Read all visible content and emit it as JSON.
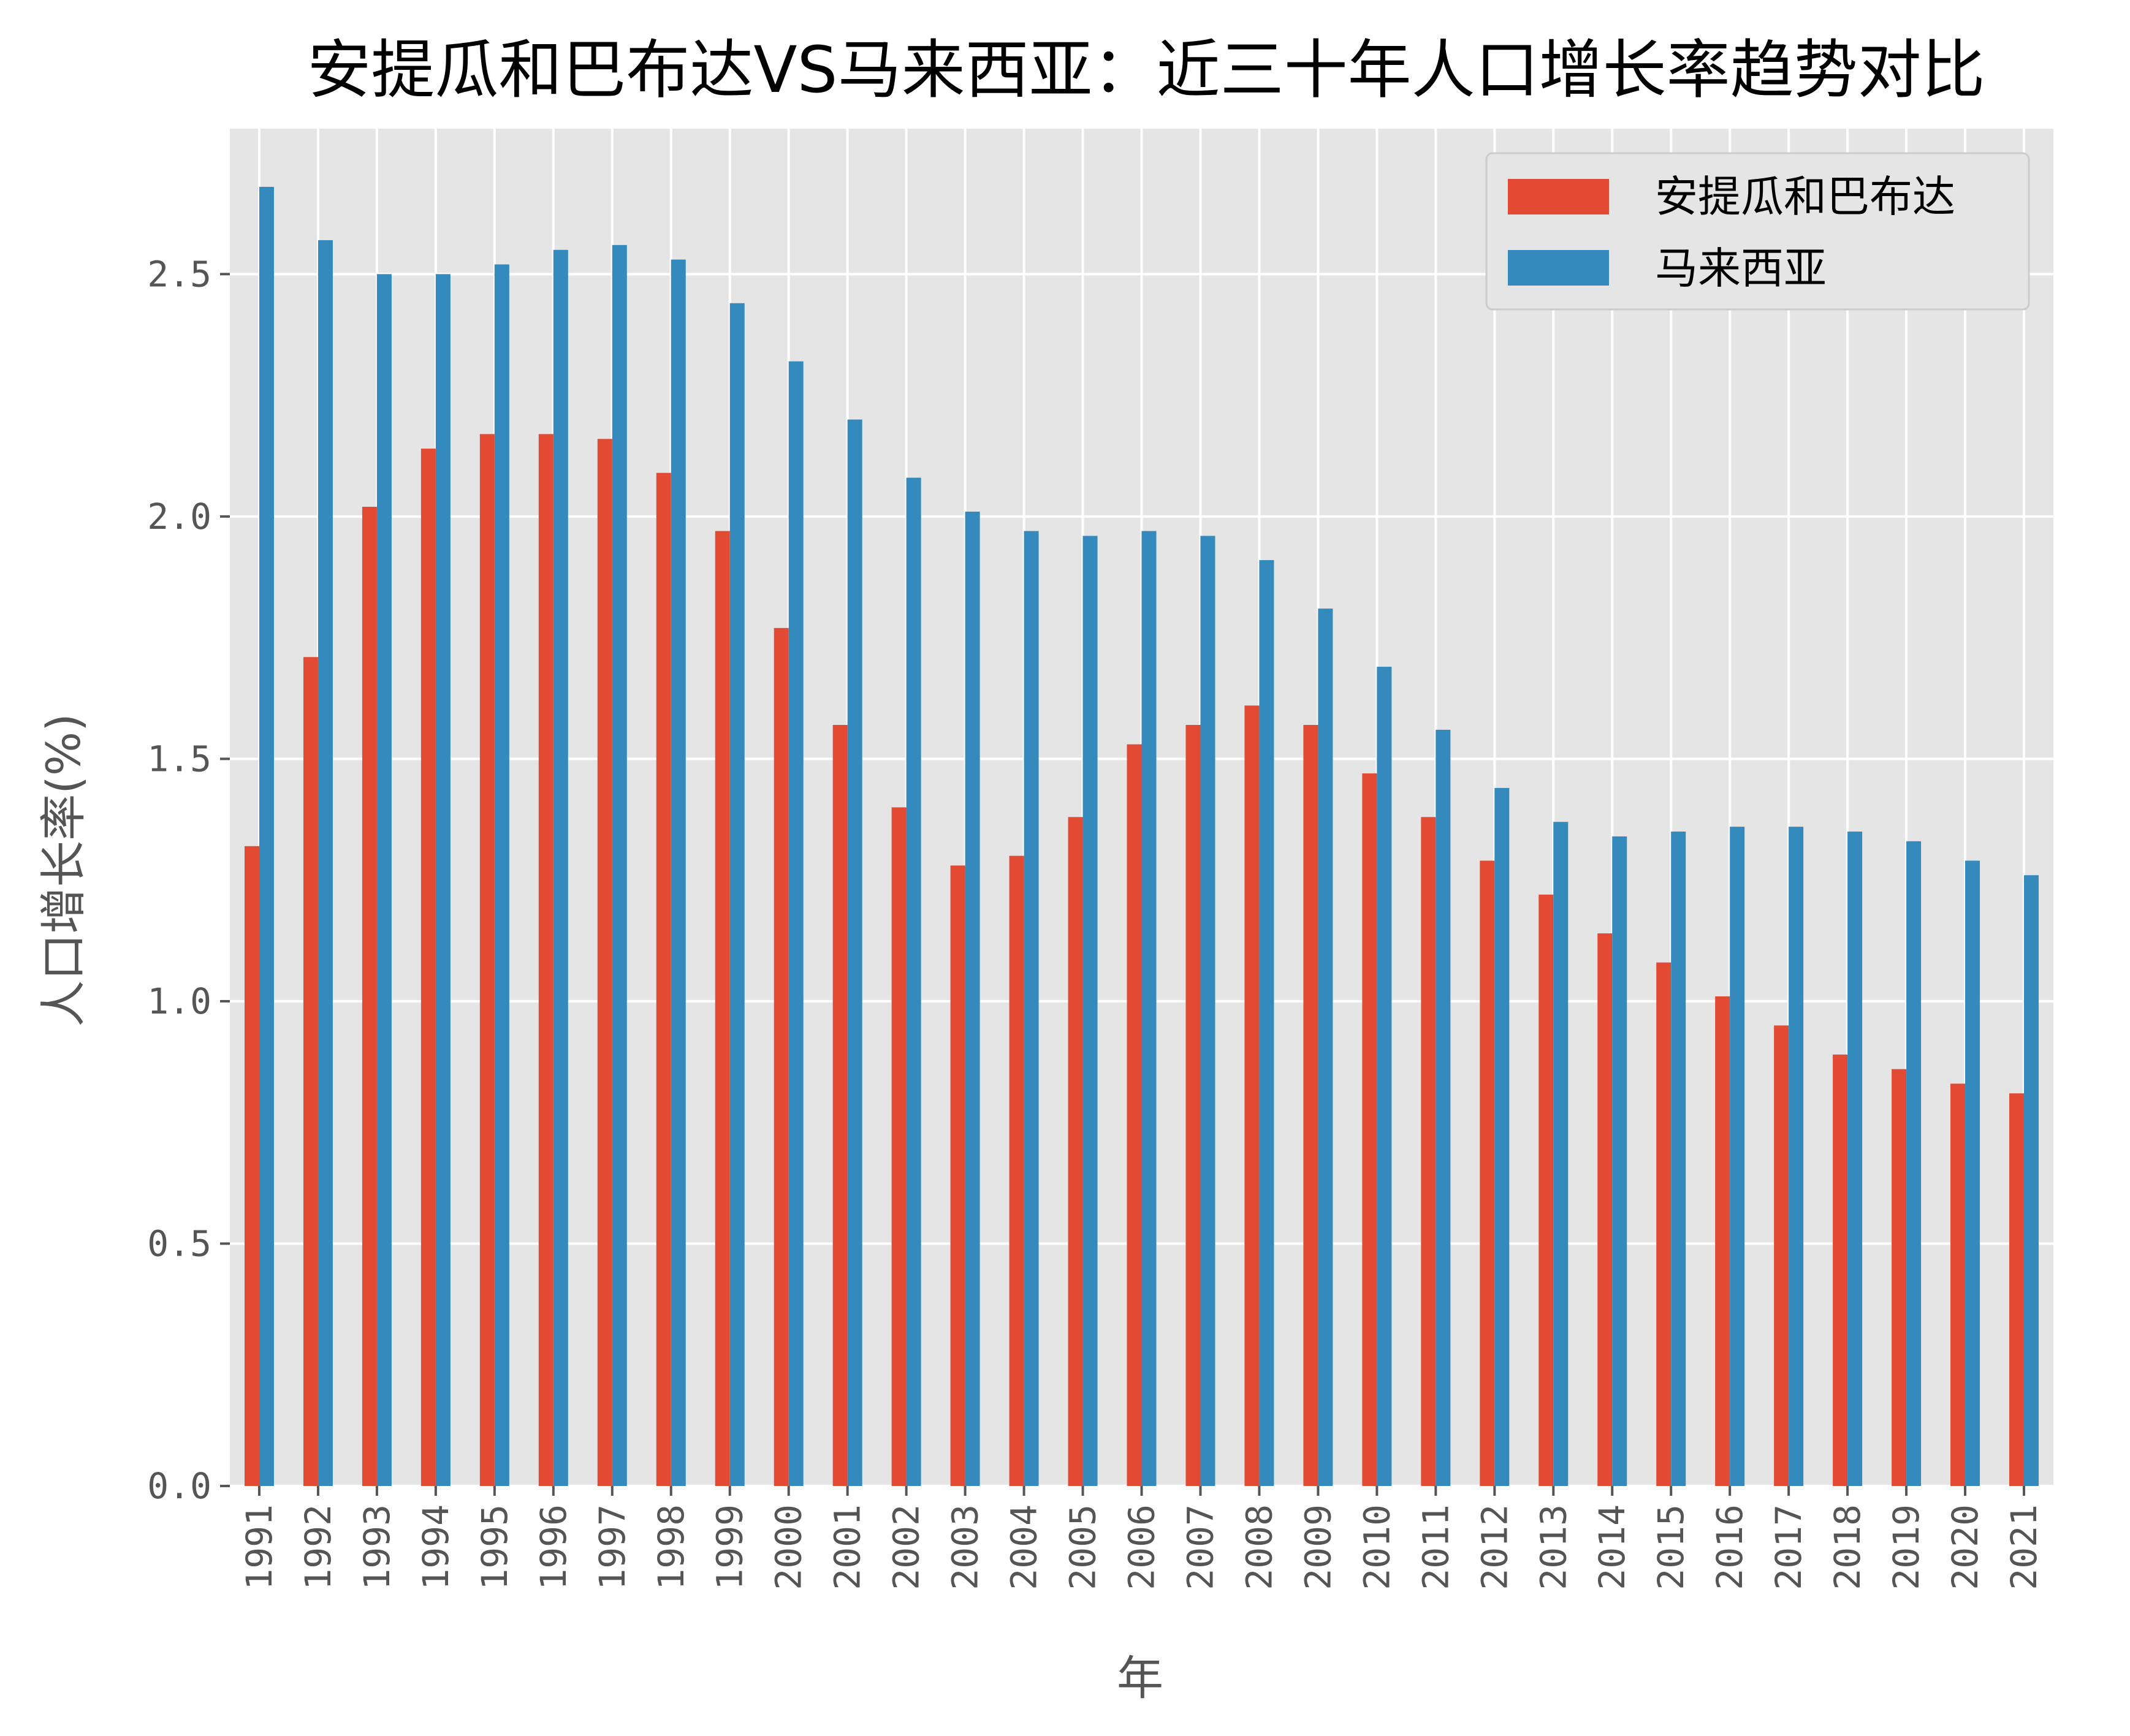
{
  "chart_data": {
    "type": "bar",
    "title": "安提瓜和巴布达VS马来西亚：近三十年人口增长率趋势对比",
    "xlabel": "年",
    "ylabel": "人口增长率(%)",
    "ylim": [
      0,
      2.8
    ],
    "yticks": [
      0.0,
      0.5,
      1.0,
      1.5,
      2.0,
      2.5
    ],
    "ytick_labels": [
      "0.0",
      "0.5",
      "1.0",
      "1.5",
      "2.0",
      "2.5"
    ],
    "grid": true,
    "legend_position": "top-right",
    "categories": [
      "1991",
      "1992",
      "1993",
      "1994",
      "1995",
      "1996",
      "1997",
      "1998",
      "1999",
      "2000",
      "2001",
      "2002",
      "2003",
      "2004",
      "2005",
      "2006",
      "2007",
      "2008",
      "2009",
      "2010",
      "2011",
      "2012",
      "2013",
      "2014",
      "2015",
      "2016",
      "2017",
      "2018",
      "2019",
      "2020",
      "2021"
    ],
    "series": [
      {
        "name": "安提瓜和巴布达",
        "color": "#e24a33",
        "values": [
          1.32,
          1.71,
          2.02,
          2.14,
          2.17,
          2.17,
          2.16,
          2.09,
          1.97,
          1.77,
          1.57,
          1.4,
          1.28,
          1.3,
          1.38,
          1.53,
          1.57,
          1.61,
          1.57,
          1.47,
          1.38,
          1.29,
          1.22,
          1.14,
          1.08,
          1.01,
          0.95,
          0.89,
          0.86,
          0.83,
          0.81
        ]
      },
      {
        "name": "马来西亚",
        "color": "#348abd",
        "values": [
          2.68,
          2.57,
          2.5,
          2.5,
          2.52,
          2.55,
          2.56,
          2.53,
          2.44,
          2.32,
          2.2,
          2.08,
          2.01,
          1.97,
          1.96,
          1.97,
          1.96,
          1.91,
          1.81,
          1.69,
          1.56,
          1.44,
          1.37,
          1.34,
          1.35,
          1.36,
          1.36,
          1.35,
          1.33,
          1.29,
          1.26
        ]
      }
    ]
  }
}
